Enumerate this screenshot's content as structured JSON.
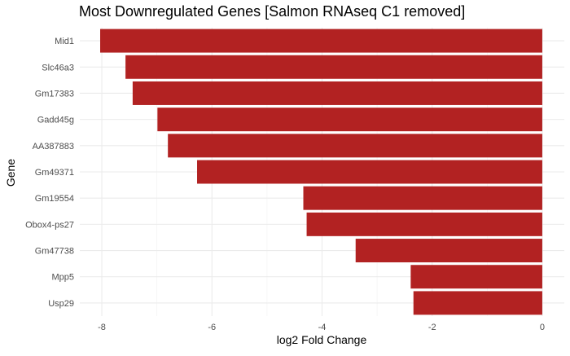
{
  "chart_data": {
    "type": "bar",
    "orientation": "horizontal",
    "title": "Most Downregulated Genes [Salmon RNAseq C1 removed]",
    "xlabel": "log2 Fold Change",
    "ylabel": "Gene",
    "categories": [
      "Mid1",
      "Slc46a3",
      "Gm17383",
      "Gadd45g",
      "AA387883",
      "Gm49371",
      "Gm19554",
      "Obox4-ps27",
      "Gm47738",
      "Mpp5",
      "Usp29"
    ],
    "values": [
      -8.03,
      -7.57,
      -7.44,
      -6.99,
      -6.8,
      -6.27,
      -4.34,
      -4.28,
      -3.39,
      -2.39,
      -2.34
    ],
    "xlim": [
      -8.4,
      0.4
    ],
    "xticks": [
      -8,
      -6,
      -4,
      -2,
      0
    ],
    "bar_color": "#B22222",
    "grid": true,
    "legend": "none"
  }
}
